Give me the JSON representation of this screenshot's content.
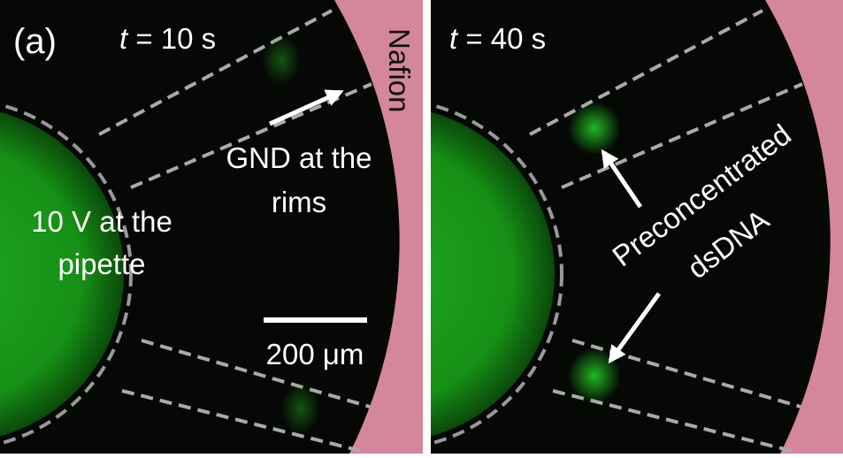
{
  "panels": [
    {
      "label": "(a)",
      "time_var": "t",
      "time": "= 10 s",
      "side_label": "Nafion",
      "annotations": [
        {
          "lines": [
            "GND at the",
            "rims"
          ]
        },
        {
          "lines": [
            "10 V at the",
            "pipette"
          ]
        }
      ],
      "scale_bar": "200 μm"
    },
    {
      "time_var": "t",
      "time": "= 40 s",
      "annotations": [
        {
          "lines": [
            "Preconcentrated",
            "dsDNA"
          ]
        }
      ]
    }
  ]
}
